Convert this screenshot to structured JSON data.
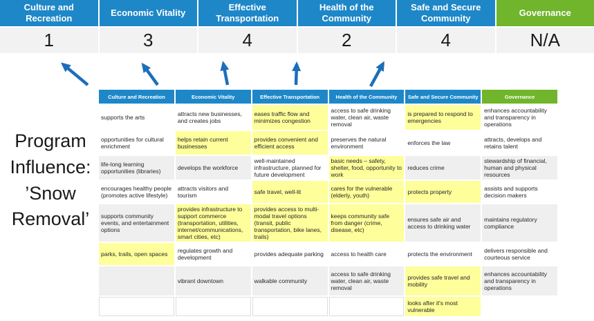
{
  "colors": {
    "header_blue": "#1e87c8",
    "header_green": "#70b52b",
    "highlight_yellow": "#fefe9b",
    "stripe_gray": "#efefef",
    "arrow_blue": "#1c6fba",
    "score_row_bg": "#f2f2f2"
  },
  "program_label": {
    "text": "Program\nInfluence:\n’Snow\nRemoval’"
  },
  "scoreboard": {
    "columns": [
      {
        "label": "Culture and Recreation",
        "score": "1",
        "theme": "blue"
      },
      {
        "label": "Economic Vitality",
        "score": "3",
        "theme": "blue"
      },
      {
        "label": "Effective Transportation",
        "score": "4",
        "theme": "blue"
      },
      {
        "label": "Health of the Community",
        "score": "2",
        "theme": "blue"
      },
      {
        "label": "Safe and Secure Community",
        "score": "4",
        "theme": "blue"
      },
      {
        "label": "Governance",
        "score": "N/A",
        "theme": "green"
      }
    ]
  },
  "matrix": {
    "headers": [
      {
        "label": "Culture and Recreation",
        "theme": "blue"
      },
      {
        "label": "Economic Vitality",
        "theme": "blue"
      },
      {
        "label": "Effective Transportation",
        "theme": "blue"
      },
      {
        "label": "Health of the Community",
        "theme": "blue"
      },
      {
        "label": "Safe and Secure Community",
        "theme": "blue"
      },
      {
        "label": "Governance",
        "theme": "green"
      }
    ],
    "rows": [
      [
        {
          "text": "supports the arts",
          "bg": "white"
        },
        {
          "text": "attracts new businesses, and creates jobs",
          "bg": "white"
        },
        {
          "text": "eases traffic flow and minimizes congestion",
          "bg": "yellow"
        },
        {
          "text": "access to safe drinking water, clean air, waste removal",
          "bg": "white"
        },
        {
          "text": "is prepared to respond to emergencies",
          "bg": "yellow"
        },
        {
          "text": "enhances accountability and transparency in operations",
          "bg": "white"
        }
      ],
      [
        {
          "text": "opportunities for cultural enrichment",
          "bg": "white"
        },
        {
          "text": "helps retain current businesses",
          "bg": "yellow"
        },
        {
          "text": "provides convenient and efficient access",
          "bg": "yellow"
        },
        {
          "text": "preserves the natural environment",
          "bg": "white"
        },
        {
          "text": "enforces the law",
          "bg": "white"
        },
        {
          "text": "attracts, develops and retains talent",
          "bg": "white"
        }
      ],
      [
        {
          "text": "life-long learning opportunities (libraries)",
          "bg": "gray"
        },
        {
          "text": "develops the workforce",
          "bg": "gray"
        },
        {
          "text": "well-maintained infrastructure, planned for future development",
          "bg": "white"
        },
        {
          "text": "basic needs – safety, shelter, food, opportunity to work",
          "bg": "yellow"
        },
        {
          "text": "reduces crime",
          "bg": "gray"
        },
        {
          "text": "stewardship of financial, human and physical resources",
          "bg": "gray"
        }
      ],
      [
        {
          "text": "encourages healthy people (promotes active lifestyle)",
          "bg": "white"
        },
        {
          "text": "attracts visitors and tourism",
          "bg": "white"
        },
        {
          "text": "safe travel, well-lit",
          "bg": "yellow"
        },
        {
          "text": "cares for the vulnerable (elderly, youth)",
          "bg": "yellow"
        },
        {
          "text": "protects property",
          "bg": "yellow"
        },
        {
          "text": "assists and supports decision makers",
          "bg": "white"
        }
      ],
      [
        {
          "text": "supports community events, and entertainment options",
          "bg": "gray"
        },
        {
          "text": "provides infrastructure to support commerce (transportation, utilities, internet/communications, smart cities, etc)",
          "bg": "yellow"
        },
        {
          "text": "provides access to multi-modal travel options (transit, public transportation, bike lanes, trails)",
          "bg": "yellow"
        },
        {
          "text": "keeps community safe from danger (crime, disease, etc)",
          "bg": "yellow"
        },
        {
          "text": "ensures safe air and access to drinking water",
          "bg": "gray"
        },
        {
          "text": "maintains regulatory compliance",
          "bg": "gray"
        }
      ],
      [
        {
          "text": "parks, trails, open spaces",
          "bg": "yellow"
        },
        {
          "text": "regulates growth and development",
          "bg": "white"
        },
        {
          "text": "provides adequate parking",
          "bg": "white"
        },
        {
          "text": "access to health care",
          "bg": "white"
        },
        {
          "text": "protects the environment",
          "bg": "white"
        },
        {
          "text": "delivers responsible and courteous service",
          "bg": "white"
        }
      ],
      [
        {
          "text": "",
          "bg": "gray"
        },
        {
          "text": "vibrant downtown",
          "bg": "gray"
        },
        {
          "text": "walkable community",
          "bg": "gray"
        },
        {
          "text": "access to safe drinking water, clean air, waste removal",
          "bg": "gray"
        },
        {
          "text": "provides safe travel and mobility",
          "bg": "yellow"
        },
        {
          "text": "enhances accountability and transparency in operations",
          "bg": "gray"
        }
      ],
      [
        {
          "text": "",
          "bg": "outline"
        },
        {
          "text": "",
          "bg": "outline"
        },
        {
          "text": "",
          "bg": "outline"
        },
        {
          "text": "",
          "bg": "outline"
        },
        {
          "text": "looks after it's most vulnerable",
          "bg": "yellow"
        },
        {
          "text": "",
          "bg": "none"
        }
      ]
    ]
  }
}
